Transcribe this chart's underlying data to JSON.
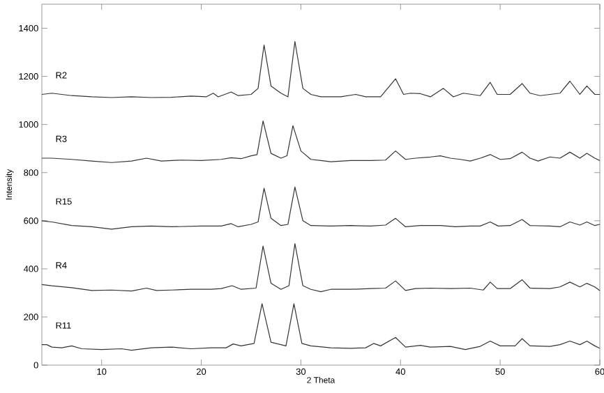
{
  "chart_data": {
    "type": "line",
    "xlabel": "2 Theta",
    "ylabel": "Intensity",
    "xlim": [
      4,
      60
    ],
    "ylim": [
      0,
      1500
    ],
    "xticks": [
      10,
      20,
      30,
      40,
      50,
      60
    ],
    "yticks": [
      0,
      200,
      400,
      600,
      800,
      1000,
      1200,
      1400
    ],
    "grid": false,
    "legend": false,
    "marker": "none",
    "line_style": "solid",
    "series": [
      {
        "name": "R2",
        "color": "#333333",
        "x": [
          4,
          5,
          7,
          9,
          11,
          13,
          15,
          17,
          19,
          20.5,
          21.2,
          21.7,
          23,
          23.7,
          25,
          25.7,
          26.3,
          27,
          28,
          28.7,
          29.4,
          30.2,
          31,
          32,
          34,
          35.5,
          36.5,
          38,
          39.5,
          40.3,
          41,
          42,
          43,
          44.3,
          45.3,
          46.3,
          48,
          49,
          49.7,
          51,
          52.2,
          53,
          54,
          55,
          56,
          57,
          58,
          58.7,
          59.5,
          60
        ],
        "values": [
          1125,
          1130,
          1120,
          1115,
          1112,
          1115,
          1112,
          1113,
          1118,
          1115,
          1130,
          1115,
          1135,
          1120,
          1125,
          1150,
          1330,
          1160,
          1130,
          1115,
          1345,
          1150,
          1125,
          1115,
          1115,
          1125,
          1115,
          1115,
          1190,
          1125,
          1130,
          1128,
          1115,
          1150,
          1115,
          1130,
          1120,
          1175,
          1125,
          1125,
          1170,
          1130,
          1120,
          1125,
          1130,
          1180,
          1125,
          1160,
          1125,
          1125
        ]
      },
      {
        "name": "R3",
        "color": "#333333",
        "x": [
          4,
          5,
          7,
          9,
          11,
          13,
          14.5,
          16,
          18,
          20,
          22,
          23,
          24,
          25,
          25.6,
          26.2,
          27,
          28,
          28.6,
          29.2,
          30,
          31,
          32,
          33,
          35,
          37,
          38.5,
          39.5,
          40.5,
          41.5,
          43,
          44,
          45,
          46,
          47,
          48,
          49,
          50,
          51,
          52.2,
          53,
          53.8,
          55,
          56,
          57,
          58,
          58.7,
          59.5,
          60
        ],
        "values": [
          860,
          860,
          855,
          848,
          842,
          848,
          860,
          848,
          852,
          850,
          855,
          862,
          858,
          870,
          875,
          1015,
          880,
          860,
          870,
          995,
          890,
          855,
          850,
          845,
          850,
          850,
          852,
          890,
          855,
          860,
          865,
          870,
          860,
          855,
          848,
          860,
          875,
          855,
          858,
          885,
          860,
          848,
          865,
          860,
          885,
          860,
          880,
          860,
          850
        ]
      },
      {
        "name": "R15",
        "color": "#333333",
        "x": [
          4,
          5,
          7,
          9,
          11,
          13,
          15,
          17,
          20,
          22,
          23,
          23.7,
          25,
          25.7,
          26.3,
          27,
          28,
          28.7,
          29.4,
          30.2,
          31,
          33,
          35,
          37,
          38.5,
          39.5,
          40.5,
          42,
          44,
          45.5,
          47,
          48,
          49,
          49.8,
          51,
          52.2,
          53,
          55,
          56,
          57,
          58,
          58.7,
          59.5,
          60
        ],
        "values": [
          600,
          595,
          580,
          575,
          565,
          575,
          578,
          575,
          578,
          578,
          588,
          575,
          585,
          595,
          735,
          610,
          580,
          585,
          740,
          600,
          580,
          578,
          580,
          578,
          582,
          610,
          575,
          580,
          580,
          575,
          578,
          578,
          595,
          578,
          580,
          605,
          580,
          578,
          575,
          595,
          582,
          595,
          580,
          585
        ]
      },
      {
        "name": "R4",
        "color": "#333333",
        "x": [
          4,
          5,
          7,
          9,
          11,
          13,
          14.5,
          15.5,
          17,
          19,
          21,
          22,
          23.1,
          24,
          25.5,
          26.2,
          27,
          28,
          28.8,
          29.4,
          30.2,
          31,
          32,
          33,
          35,
          37,
          38.5,
          39.5,
          40.5,
          41.5,
          43,
          45,
          47,
          48.3,
          49,
          49.7,
          51,
          52.2,
          53,
          55,
          56,
          57,
          58,
          58.7,
          59.5,
          60
        ],
        "values": [
          335,
          330,
          322,
          310,
          312,
          308,
          320,
          310,
          312,
          315,
          315,
          318,
          330,
          315,
          320,
          495,
          340,
          315,
          330,
          505,
          330,
          315,
          305,
          315,
          315,
          318,
          320,
          350,
          310,
          318,
          320,
          318,
          320,
          312,
          345,
          318,
          318,
          355,
          320,
          318,
          325,
          345,
          325,
          340,
          325,
          310
        ]
      },
      {
        "name": "R11",
        "color": "#333333",
        "x": [
          4,
          4.5,
          5,
          6,
          7,
          8,
          10,
          12,
          13,
          15,
          17,
          19,
          21,
          22.5,
          23.2,
          24,
          25.3,
          26.1,
          27,
          28.5,
          29.3,
          30.1,
          31,
          33,
          35,
          36.5,
          37.3,
          38,
          39.5,
          40.5,
          42,
          43,
          45,
          46.5,
          48,
          49,
          50,
          51.5,
          52.2,
          53,
          55,
          56,
          57,
          58,
          58.7,
          59.5,
          60
        ],
        "values": [
          85,
          85,
          75,
          72,
          80,
          68,
          65,
          68,
          62,
          72,
          75,
          68,
          72,
          72,
          88,
          80,
          90,
          255,
          95,
          80,
          255,
          90,
          80,
          72,
          70,
          72,
          90,
          80,
          115,
          75,
          82,
          75,
          78,
          65,
          78,
          100,
          80,
          80,
          110,
          80,
          78,
          85,
          100,
          85,
          100,
          80,
          70
        ]
      }
    ]
  }
}
